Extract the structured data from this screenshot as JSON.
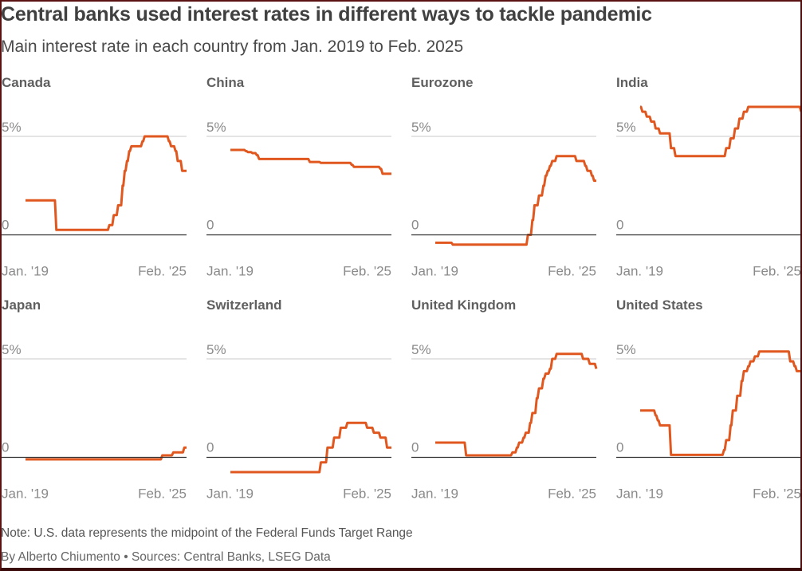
{
  "header": {
    "title": "Central banks used interest rates in different ways to tackle pandemic",
    "subtitle": "Main interest rate in each country from Jan. 2019 to Feb. 2025"
  },
  "footer": {
    "note": "Note: U.S. data represents the midpoint of the Federal Funds Target Range",
    "byline": "By Alberto Chiumento • Sources: Central Banks, LSEG Data"
  },
  "colors": {
    "line": "#e0581f",
    "gridline": "#c8c8c8",
    "baseline": "#333333",
    "frame": "#5a1212"
  },
  "chart_data": {
    "type": "line",
    "layout": "small-multiples 2 rows x 4 columns",
    "title": "Central banks used interest rates in different ways to tackle pandemic",
    "subtitle": "Main interest rate in each country from Jan. 2019 to Feb. 2025",
    "x_start": "2019-01",
    "x_end": "2025-02",
    "x_interval": "monthly (step values, one per month)",
    "xtick_labels": [
      "Jan. '19",
      "Feb. '25"
    ],
    "ytick_labels": [
      "0",
      "5%"
    ],
    "ytick_values": [
      0,
      5
    ],
    "ylim": [
      -1,
      7
    ],
    "grid": true,
    "unit": "%",
    "panels": [
      {
        "name": "Canada",
        "steps": [
          [
            0,
            1.75
          ],
          [
            14,
            0.25
          ],
          [
            38,
            0.5
          ],
          [
            40,
            1.0
          ],
          [
            42,
            1.5
          ],
          [
            44,
            2.5
          ],
          [
            45,
            3.25
          ],
          [
            46,
            3.75
          ],
          [
            47,
            4.25
          ],
          [
            48,
            4.5
          ],
          [
            53,
            4.75
          ],
          [
            54,
            5.0
          ],
          [
            65,
            4.75
          ],
          [
            66,
            4.5
          ],
          [
            68,
            4.25
          ],
          [
            69,
            3.75
          ],
          [
            71,
            3.25
          ],
          [
            73,
            3.25
          ]
        ]
      },
      {
        "name": "China",
        "steps": [
          [
            0,
            4.31
          ],
          [
            7,
            4.25
          ],
          [
            8,
            4.2
          ],
          [
            10,
            4.15
          ],
          [
            12,
            4.05
          ],
          [
            13,
            3.85
          ],
          [
            36,
            3.7
          ],
          [
            41,
            3.65
          ],
          [
            44,
            3.65
          ],
          [
            48,
            3.65
          ],
          [
            55,
            3.55
          ],
          [
            56,
            3.45
          ],
          [
            68,
            3.35
          ],
          [
            69,
            3.1
          ],
          [
            73,
            3.1
          ]
        ]
      },
      {
        "name": "Eurozone",
        "steps": [
          [
            0,
            -0.4
          ],
          [
            8,
            -0.5
          ],
          [
            42,
            0.0
          ],
          [
            44,
            0.75
          ],
          [
            45,
            1.5
          ],
          [
            47,
            2.0
          ],
          [
            49,
            2.5
          ],
          [
            50,
            3.0
          ],
          [
            51,
            3.25
          ],
          [
            52,
            3.5
          ],
          [
            53,
            3.75
          ],
          [
            55,
            4.0
          ],
          [
            64,
            3.75
          ],
          [
            68,
            3.5
          ],
          [
            69,
            3.25
          ],
          [
            71,
            3.0
          ],
          [
            72,
            2.75
          ],
          [
            73,
            2.75
          ]
        ]
      },
      {
        "name": "India",
        "steps": [
          [
            0,
            6.5
          ],
          [
            1,
            6.25
          ],
          [
            3,
            6.0
          ],
          [
            5,
            5.75
          ],
          [
            7,
            5.4
          ],
          [
            9,
            5.15
          ],
          [
            14,
            4.4
          ],
          [
            16,
            4.0
          ],
          [
            39,
            4.4
          ],
          [
            41,
            4.9
          ],
          [
            43,
            5.4
          ],
          [
            45,
            5.9
          ],
          [
            47,
            6.25
          ],
          [
            49,
            6.5
          ],
          [
            72,
            6.5
          ],
          [
            73,
            6.25
          ]
        ]
      },
      {
        "name": "Japan",
        "steps": [
          [
            0,
            -0.1
          ],
          [
            62,
            0.1
          ],
          [
            67,
            0.25
          ],
          [
            72,
            0.5
          ],
          [
            73,
            0.5
          ]
        ]
      },
      {
        "name": "Switzerland",
        "steps": [
          [
            0,
            -0.75
          ],
          [
            41,
            -0.25
          ],
          [
            44,
            0.5
          ],
          [
            47,
            1.0
          ],
          [
            50,
            1.5
          ],
          [
            53,
            1.75
          ],
          [
            62,
            1.5
          ],
          [
            65,
            1.25
          ],
          [
            68,
            1.0
          ],
          [
            71,
            0.5
          ],
          [
            73,
            0.5
          ]
        ]
      },
      {
        "name": "United Kingdom",
        "steps": [
          [
            0,
            0.75
          ],
          [
            14,
            0.1
          ],
          [
            35,
            0.25
          ],
          [
            37,
            0.5
          ],
          [
            38,
            0.75
          ],
          [
            40,
            1.0
          ],
          [
            41,
            1.25
          ],
          [
            43,
            1.75
          ],
          [
            44,
            2.25
          ],
          [
            46,
            3.0
          ],
          [
            47,
            3.5
          ],
          [
            49,
            4.0
          ],
          [
            50,
            4.25
          ],
          [
            52,
            4.5
          ],
          [
            53,
            5.0
          ],
          [
            55,
            5.25
          ],
          [
            67,
            5.0
          ],
          [
            70,
            4.75
          ],
          [
            73,
            4.5
          ]
        ]
      },
      {
        "name": "United States",
        "steps": [
          [
            0,
            2.375
          ],
          [
            7,
            2.125
          ],
          [
            8,
            1.875
          ],
          [
            9,
            1.625
          ],
          [
            14,
            0.125
          ],
          [
            38,
            0.375
          ],
          [
            39,
            0.875
          ],
          [
            41,
            1.625
          ],
          [
            42,
            2.375
          ],
          [
            44,
            3.125
          ],
          [
            46,
            3.875
          ],
          [
            47,
            4.375
          ],
          [
            49,
            4.625
          ],
          [
            50,
            4.875
          ],
          [
            52,
            5.125
          ],
          [
            54,
            5.375
          ],
          [
            68,
            4.875
          ],
          [
            70,
            4.625
          ],
          [
            71,
            4.375
          ],
          [
            73,
            4.375
          ]
        ]
      }
    ]
  }
}
